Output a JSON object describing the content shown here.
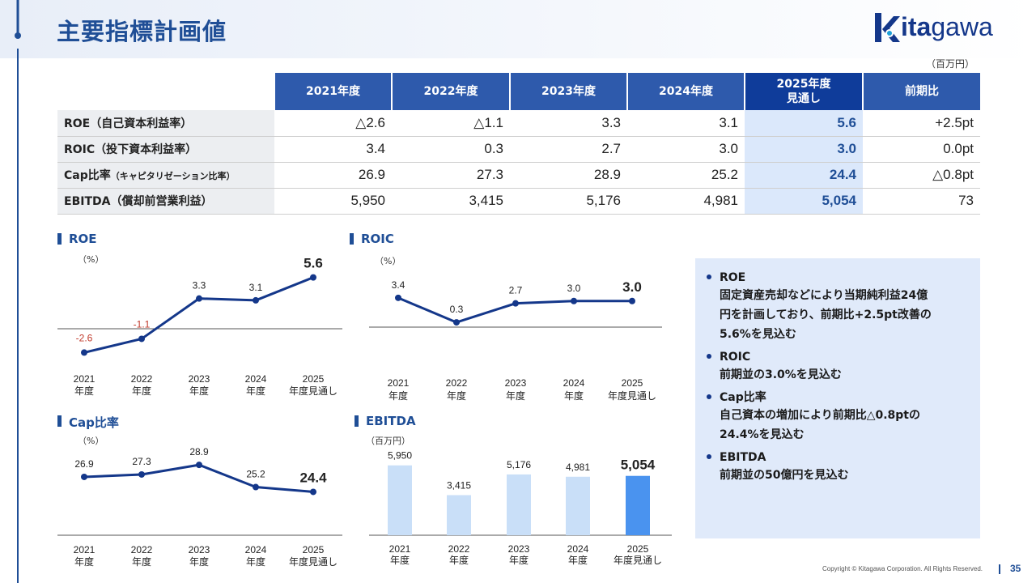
{
  "page": {
    "title": "主要指標計画値",
    "logo_k": "k",
    "logo_bold": "ita",
    "logo_rest": "gawa",
    "copyright": "Copyright © Kitagawa Corporation. All Rights Reserved.",
    "page_number": "35"
  },
  "table": {
    "unit": "（百万円）",
    "headers": [
      "2021年度",
      "2022年度",
      "2023年度",
      "2024年度",
      "2025年度",
      "見通し",
      "前期比"
    ],
    "rows": [
      {
        "label": "ROE（自己資本利益率）",
        "values": [
          "△2.6",
          "△1.1",
          "3.3",
          "3.1",
          "5.6",
          "+2.5pt"
        ]
      },
      {
        "label": "ROIC（投下資本利益率）",
        "values": [
          "3.4",
          "0.3",
          "2.7",
          "3.0",
          "3.0",
          "0.0pt"
        ]
      },
      {
        "label": "Cap比率",
        "label_small": "（キャピタリゼーション比率）",
        "values": [
          "26.9",
          "27.3",
          "28.9",
          "25.2",
          "24.4",
          "△0.8pt"
        ]
      },
      {
        "label": "EBITDA（償却前営業利益）",
        "values": [
          "5,950",
          "3,415",
          "5,176",
          "4,981",
          "5,054",
          "73"
        ]
      }
    ]
  },
  "chart_data": [
    {
      "id": "roe",
      "type": "line",
      "title": "ROE",
      "unit": "（%）",
      "x_top": [
        "2021",
        "2022",
        "2023",
        "2024",
        "2025"
      ],
      "x_bottom": [
        "年度",
        "年度",
        "年度",
        "年度",
        "年度見通し"
      ],
      "values": [
        -2.6,
        -1.1,
        3.3,
        3.1,
        5.6
      ],
      "labels": [
        "-2.6",
        "-1.1",
        "3.3",
        "3.1",
        "5.6"
      ],
      "ylim": [
        -4,
        7
      ],
      "color": "#14378a",
      "negative_color": "#c0392b"
    },
    {
      "id": "roic",
      "type": "line",
      "title": "ROIC",
      "unit": "（%）",
      "x_top": [
        "2021",
        "2022",
        "2023",
        "2024",
        "2025"
      ],
      "x_bottom": [
        "年度",
        "年度",
        "年度",
        "年度",
        "年度見通し"
      ],
      "values": [
        3.4,
        0.3,
        2.7,
        3.0,
        3.0
      ],
      "labels": [
        "3.4",
        "0.3",
        "2.7",
        "3.0",
        "3.0"
      ],
      "ylim": [
        0,
        4
      ],
      "color": "#14378a"
    },
    {
      "id": "cap",
      "type": "line",
      "title": "Cap比率",
      "unit": "（%）",
      "x_top": [
        "2021",
        "2022",
        "2023",
        "2024",
        "2025"
      ],
      "x_bottom": [
        "年度",
        "年度",
        "年度",
        "年度",
        "年度見通し"
      ],
      "values": [
        26.9,
        27.3,
        28.9,
        25.2,
        24.4
      ],
      "labels": [
        "26.9",
        "27.3",
        "28.9",
        "25.2",
        "24.4"
      ],
      "ylim": [
        20,
        30
      ],
      "color": "#14378a"
    },
    {
      "id": "ebitda",
      "type": "bar",
      "title": "EBITDA",
      "unit": "（百万円）",
      "x_top": [
        "2021",
        "2022",
        "2023",
        "2024",
        "2025"
      ],
      "x_bottom": [
        "年度",
        "年度",
        "年度",
        "年度",
        "年度見通し"
      ],
      "values": [
        5950,
        3415,
        5176,
        4981,
        5054
      ],
      "labels": [
        "5,950",
        "3,415",
        "5,176",
        "4,981",
        "5,054"
      ],
      "ylim": [
        0,
        6000
      ],
      "color": "#c9dff8",
      "highlight_color": "#4a93ef"
    }
  ],
  "notes": [
    {
      "head": "ROE",
      "body": [
        "固定資産売却などにより当期純利益24億",
        "円を計画しており、前期比+2.5pt改善の",
        "5.6%を見込む"
      ]
    },
    {
      "head": "ROIC",
      "body": [
        "前期並の3.0%を見込む"
      ]
    },
    {
      "head": "Cap比率",
      "body": [
        "自己資本の増加により前期比△0.8ptの",
        "24.4%を見込む"
      ]
    },
    {
      "head": "EBITDA",
      "body": [
        "前期並の50億円を見込む"
      ]
    }
  ]
}
